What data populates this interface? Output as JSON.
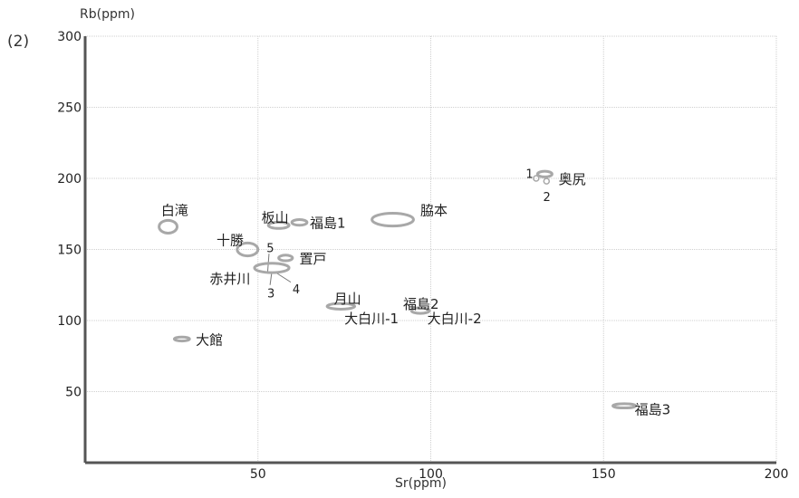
{
  "panel_label": "(2)",
  "chart_data": {
    "type": "scatter",
    "title": "",
    "xlabel": "Sr(ppm)",
    "ylabel": "Rb(ppm)",
    "xlim": [
      0,
      200
    ],
    "ylim": [
      0,
      300
    ],
    "xticks": [
      50,
      100,
      150,
      200
    ],
    "yticks": [
      50,
      100,
      150,
      200,
      250,
      300
    ],
    "grid": true,
    "legend": "none",
    "marker_color": "#a8a8a8",
    "points": [
      {
        "label": "白滝",
        "x": 24,
        "y": 166,
        "rx": 2.6,
        "ry": 4.5
      },
      {
        "label": "板山",
        "x": 56,
        "y": 167,
        "rx": 3,
        "ry": 2.2
      },
      {
        "label": "福島1",
        "x": 62,
        "y": 169,
        "rx": 2.2,
        "ry": 2
      },
      {
        "label": "脇本",
        "x": 89,
        "y": 171,
        "rx": 6,
        "ry": 4.5
      },
      {
        "label": "十勝",
        "x": 47,
        "y": 150,
        "rx": 3,
        "ry": 4.5
      },
      {
        "label": "置戸",
        "x": 58,
        "y": 144,
        "rx": 2,
        "ry": 2
      },
      {
        "label": "赤井川",
        "x": 54,
        "y": 137,
        "rx": 5,
        "ry": 3.3
      },
      {
        "label": "月山",
        "x": 74,
        "y": 110,
        "rx": 4,
        "ry": 2
      },
      {
        "label": "福島2",
        "x": 97,
        "y": 107,
        "rx": 2.6,
        "ry": 2
      },
      {
        "label": "大館",
        "x": 28,
        "y": 87,
        "rx": 2.2,
        "ry": 1.4
      },
      {
        "label": "奥尻",
        "x": 133,
        "y": 203,
        "rx": 2.1,
        "ry": 2
      },
      {
        "label": "福島3",
        "x": 156,
        "y": 40,
        "rx": 3.3,
        "ry": 1.5
      }
    ],
    "small_points": [
      {
        "x": 130.5,
        "y": 200
      },
      {
        "x": 133.5,
        "y": 198
      }
    ],
    "annotations": [
      {
        "text": "白滝",
        "x": 22,
        "y": 178
      },
      {
        "text": "板山",
        "x": 51,
        "y": 173
      },
      {
        "text": "福島1",
        "x": 65,
        "y": 169
      },
      {
        "text": "脇本",
        "x": 97,
        "y": 178
      },
      {
        "text": "十勝",
        "x": 38,
        "y": 157
      },
      {
        "text": "5",
        "x": 52.5,
        "y": 152
      },
      {
        "text": "置戸",
        "x": 62,
        "y": 144
      },
      {
        "text": "赤井川",
        "x": 36,
        "y": 130
      },
      {
        "text": "3",
        "x": 52.7,
        "y": 120
      },
      {
        "text": "4",
        "x": 60,
        "y": 123
      },
      {
        "text": "月山",
        "x": 72,
        "y": 116
      },
      {
        "text": "福島2",
        "x": 92,
        "y": 112
      },
      {
        "text": "大白川-1",
        "x": 75,
        "y": 102
      },
      {
        "text": "大白川-2",
        "x": 99,
        "y": 102
      },
      {
        "text": "大館",
        "x": 32,
        "y": 87
      },
      {
        "text": "1",
        "x": 127.5,
        "y": 204
      },
      {
        "text": "2",
        "x": 132.5,
        "y": 188
      },
      {
        "text": "奥尻",
        "x": 137,
        "y": 200
      },
      {
        "text": "福島3",
        "x": 159,
        "y": 38
      }
    ]
  }
}
